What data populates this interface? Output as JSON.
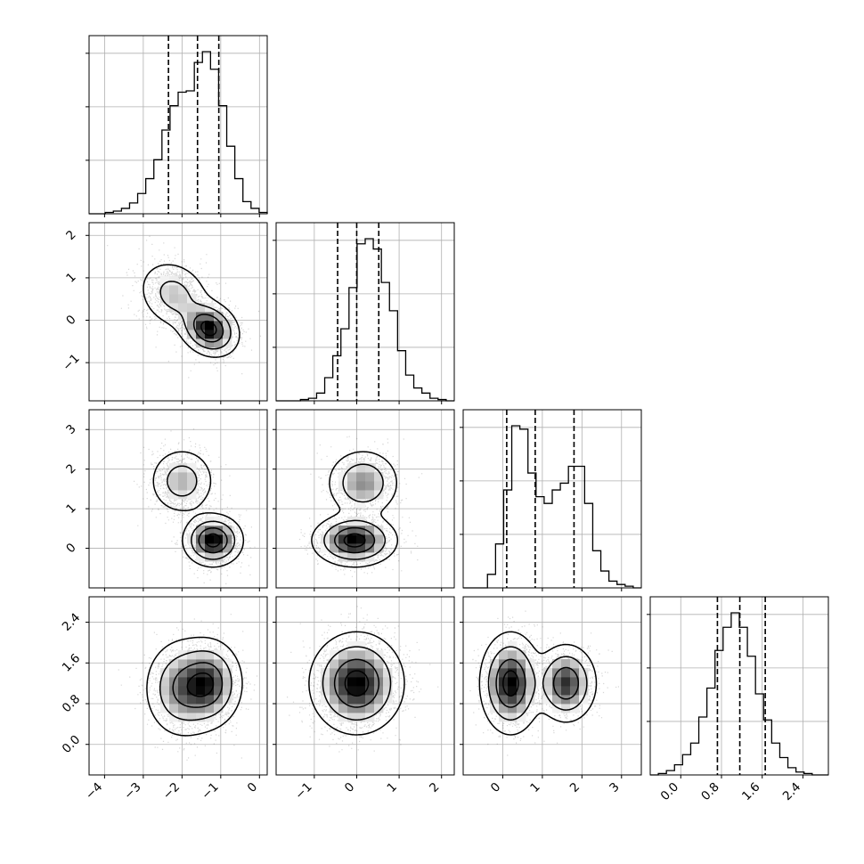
{
  "chart_data": {
    "type": "corner",
    "grid": true,
    "num_params": 4,
    "param_ranges": [
      [
        -4.4,
        0.2
      ],
      [
        -1.9,
        2.3
      ],
      [
        -1.0,
        3.5
      ],
      [
        -0.6,
        2.9
      ]
    ],
    "hist_counts": [
      [
        0.0,
        0.0,
        0.5,
        1.0,
        2.0,
        4.0,
        7.5,
        13.0,
        20.0,
        31.0,
        40.0,
        45.0,
        45.5,
        56.0,
        60.0,
        53.5,
        40.0,
        25.0,
        13.0,
        4.5,
        2.0,
        0.5
      ],
      [
        0.0,
        0.0,
        0.0,
        0.5,
        1.0,
        3.0,
        9.0,
        17.5,
        28.0,
        44.0,
        61.0,
        63.0,
        59.0,
        46.0,
        35.0,
        19.5,
        10.0,
        5.0,
        3.0,
        1.0,
        0.5,
        0.0
      ],
      [
        0.0,
        0.0,
        0.0,
        4.0,
        13.0,
        29.0,
        48.0,
        47.0,
        34.0,
        27.0,
        25.0,
        29.0,
        31.0,
        36.0,
        36.0,
        25.0,
        11.0,
        5.0,
        2.0,
        1.0,
        0.5,
        0.0
      ],
      [
        0.0,
        0.5,
        1.5,
        3.5,
        7.0,
        11.0,
        20.0,
        30.0,
        43.0,
        51.0,
        56.0,
        51.0,
        41.0,
        28.0,
        19.0,
        11.0,
        6.0,
        2.5,
        1.0,
        0.5,
        0.0,
        0.0
      ]
    ],
    "quantiles": [
      [
        -2.35,
        -1.6,
        -1.05
      ],
      [
        -0.45,
        0.0,
        0.52
      ],
      [
        0.1,
        0.82,
        1.8
      ],
      [
        0.72,
        1.16,
        1.66
      ]
    ],
    "x_tick_labels": [
      [
        "−4",
        "−3",
        "−2",
        "−1",
        "0"
      ],
      [
        "−1",
        "0",
        "1",
        "2"
      ],
      [
        "0",
        "1",
        "2",
        "3"
      ],
      [
        "0.0",
        "0.8",
        "1.6",
        "2.4"
      ]
    ],
    "y_tick_labels": [
      [],
      [
        "2",
        "1",
        "0",
        "−1"
      ],
      [
        "3",
        "2",
        "1",
        "0"
      ],
      [
        "2.4",
        "1.6",
        "0.8",
        "0.0"
      ]
    ],
    "x_tick_values": [
      [
        -4,
        -3,
        -2,
        -1,
        0
      ],
      [
        -1,
        0,
        1,
        2
      ],
      [
        0,
        1,
        2,
        3
      ],
      [
        0.0,
        0.8,
        1.6,
        2.4
      ]
    ],
    "y_tick_values": [
      [],
      [
        2,
        1,
        0,
        -1
      ],
      [
        3,
        2,
        1,
        0
      ],
      [
        2.4,
        1.6,
        0.8,
        0.0
      ]
    ],
    "components_2d": {
      "1_0": [
        [
          -2.2,
          0.6,
          0.45,
          0.4,
          -0.2,
          0.4
        ],
        [
          -1.3,
          -0.2,
          0.35,
          0.3,
          -0.2,
          0.6
        ]
      ],
      "2_0": [
        [
          -2.0,
          1.7,
          0.4,
          0.4,
          0.0,
          0.4
        ],
        [
          -1.2,
          0.2,
          0.35,
          0.3,
          0.0,
          0.6
        ]
      ],
      "2_1": [
        [
          -0.05,
          0.2,
          0.45,
          0.3,
          0.0,
          0.6
        ],
        [
          0.15,
          1.65,
          0.4,
          0.4,
          0.0,
          0.4
        ]
      ],
      "3_0": [
        [
          -2.0,
          1.1,
          0.45,
          0.45,
          0.0,
          0.5
        ],
        [
          -1.3,
          1.2,
          0.4,
          0.4,
          0.0,
          0.5
        ]
      ],
      "3_1": [
        [
          0.0,
          1.2,
          0.5,
          0.45,
          0.0,
          1.0
        ]
      ],
      "3_2": [
        [
          0.2,
          1.2,
          0.35,
          0.45,
          0.0,
          0.6
        ],
        [
          1.6,
          1.2,
          0.35,
          0.35,
          0.0,
          0.4
        ]
      ]
    }
  },
  "colors": {
    "axes": "#000000",
    "grid": "#b0b0b0",
    "points": "#444444",
    "contour": "#000000",
    "density_max": "#000000"
  }
}
